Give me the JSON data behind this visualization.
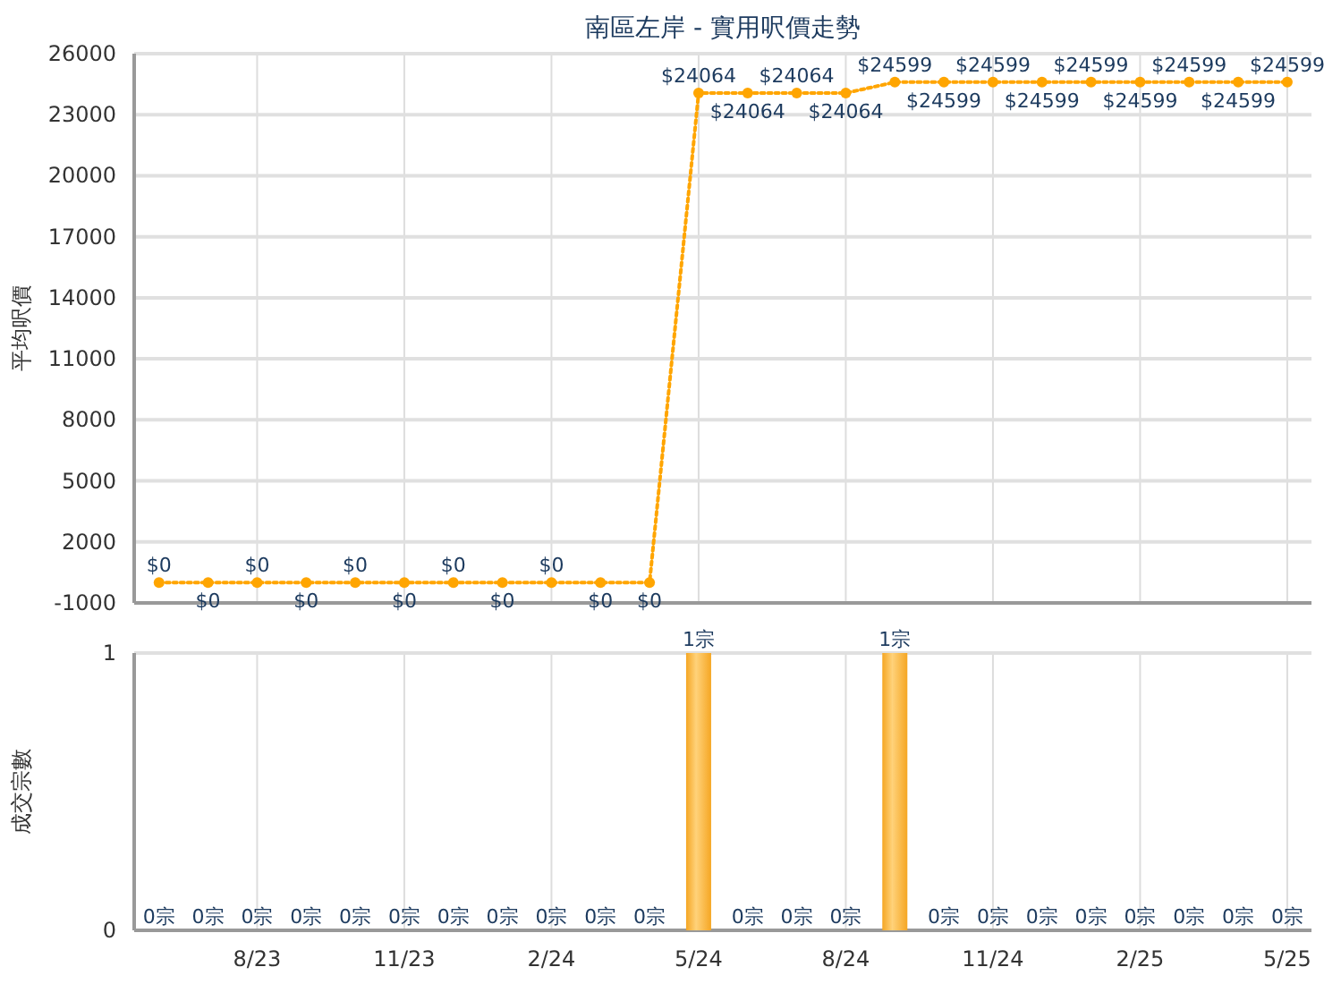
{
  "chart_data": [
    {
      "type": "line",
      "title": "南區左岸 - 實用呎價走勢",
      "ylabel": "平均呎價",
      "x": [
        "2023-06",
        "2023-07",
        "2023-08",
        "2023-09",
        "2023-10",
        "2023-11",
        "2023-12",
        "2024-01",
        "2024-02",
        "2024-03",
        "2024-04",
        "2024-05",
        "2024-06",
        "2024-07",
        "2024-08",
        "2024-09",
        "2024-10",
        "2024-11",
        "2024-12",
        "2025-01",
        "2025-02",
        "2025-03",
        "2025-04",
        "2025-05"
      ],
      "series": [
        {
          "color": "#ffa500",
          "values": [
            0,
            0,
            0,
            0,
            0,
            0,
            0,
            0,
            0,
            0,
            0,
            24064,
            24064,
            24064,
            24064,
            24599,
            24599,
            24599,
            24599,
            24599,
            24599,
            24599,
            24599,
            24599
          ],
          "value_labels": [
            "$0",
            "$0",
            "$0",
            "$0",
            "$0",
            "$0",
            "$0",
            "$0",
            "$0",
            "$0",
            "$0",
            "$24064",
            "$24064",
            "$24064",
            "$24064",
            "$24599",
            "$24599",
            "$24599",
            "$24599",
            "$24599",
            "$24599",
            "$24599",
            "$24599",
            "$24599"
          ]
        }
      ],
      "xlim": [
        "2023-05-16",
        "2025-05-16"
      ],
      "xticks": [
        {
          "value": "2023-08",
          "label": null
        },
        {
          "value": "2023-11",
          "label": null
        },
        {
          "value": "2024-02",
          "label": null
        },
        {
          "value": "2024-05",
          "label": null
        },
        {
          "value": "2024-08",
          "label": null
        },
        {
          "value": "2024-11",
          "label": null
        },
        {
          "value": "2025-02",
          "label": null
        },
        {
          "value": "2025-05",
          "label": null
        }
      ],
      "ylim": [
        -1000,
        26000
      ],
      "yticks": [
        -1000,
        2000,
        5000,
        8000,
        11000,
        14000,
        17000,
        20000,
        23000,
        26000
      ],
      "tick_labels": "y",
      "grid": true,
      "marker": "circle",
      "line_style": "dotted"
    },
    {
      "type": "bar",
      "ylabel": "成交宗數",
      "x": [
        "2023-06",
        "2023-07",
        "2023-08",
        "2023-09",
        "2023-10",
        "2023-11",
        "2023-12",
        "2024-01",
        "2024-02",
        "2024-03",
        "2024-04",
        "2024-05",
        "2024-06",
        "2024-07",
        "2024-08",
        "2024-09",
        "2024-10",
        "2024-11",
        "2024-12",
        "2025-01",
        "2025-02",
        "2025-03",
        "2025-04",
        "2025-05"
      ],
      "series": [
        {
          "color": "#f5a623",
          "values": [
            0,
            0,
            0,
            0,
            0,
            0,
            0,
            0,
            0,
            0,
            0,
            1,
            0,
            0,
            0,
            1,
            0,
            0,
            0,
            0,
            0,
            0,
            0,
            0
          ],
          "value_labels": [
            "0宗",
            "0宗",
            "0宗",
            "0宗",
            "0宗",
            "0宗",
            "0宗",
            "0宗",
            "0宗",
            "0宗",
            "0宗",
            "1宗",
            "0宗",
            "0宗",
            "0宗",
            "1宗",
            "0宗",
            "0宗",
            "0宗",
            "0宗",
            "0宗",
            "0宗",
            "0宗",
            "0宗"
          ]
        }
      ],
      "xlim": [
        "2023-05-16",
        "2025-05-16"
      ],
      "xticks": [
        {
          "value": "2023-08",
          "label": "8/23"
        },
        {
          "value": "2023-11",
          "label": "11/23"
        },
        {
          "value": "2024-02",
          "label": "2/24"
        },
        {
          "value": "2024-05",
          "label": "5/24"
        },
        {
          "value": "2024-08",
          "label": "8/24"
        },
        {
          "value": "2024-11",
          "label": "11/24"
        },
        {
          "value": "2025-02",
          "label": "2/25"
        },
        {
          "value": "2025-05",
          "label": "5/25"
        }
      ],
      "ylim": [
        0,
        1
      ],
      "yticks": [
        0,
        1
      ],
      "grid": true
    }
  ]
}
